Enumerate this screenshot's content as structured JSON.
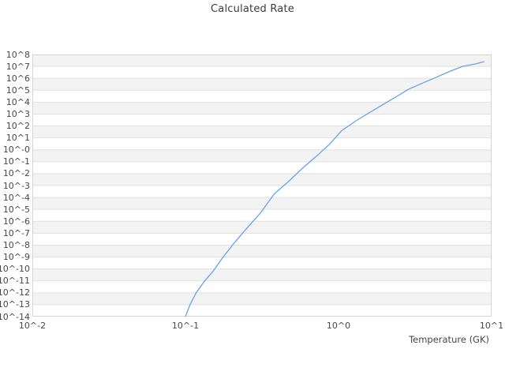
{
  "title": "Calculated Rate",
  "axes": {
    "x": {
      "label": "Temperature (GK)",
      "scale": "log",
      "ticks": [
        {
          "label": "10^-2",
          "log": -2
        },
        {
          "label": "10^-1",
          "log": -1
        },
        {
          "label": "10^0",
          "log": 0
        },
        {
          "label": "10^1",
          "log": 1
        }
      ]
    },
    "y": {
      "label": "",
      "scale": "log",
      "ticks": [
        {
          "label": "10^8",
          "log": 8
        },
        {
          "label": "10^7",
          "log": 7
        },
        {
          "label": "10^6",
          "log": 6
        },
        {
          "label": "10^5",
          "log": 5
        },
        {
          "label": "10^4",
          "log": 4
        },
        {
          "label": "10^3",
          "log": 3
        },
        {
          "label": "10^2",
          "log": 2
        },
        {
          "label": "10^1",
          "log": 1
        },
        {
          "label": "10^-0",
          "log": 0
        },
        {
          "label": "10^-1",
          "log": -1
        },
        {
          "label": "10^-2",
          "log": -2
        },
        {
          "label": "10^-3",
          "log": -3
        },
        {
          "label": "10^-4",
          "log": -4
        },
        {
          "label": "10^-5",
          "log": -5
        },
        {
          "label": "10^-6",
          "log": -6
        },
        {
          "label": "10^-7",
          "log": -7
        },
        {
          "label": "10^-8",
          "log": -8
        },
        {
          "label": "10^-9",
          "log": -9
        },
        {
          "label": "10^-10",
          "log": -10
        },
        {
          "label": "10^-11",
          "log": -11
        },
        {
          "label": "10^-12",
          "log": -12
        },
        {
          "label": "10^-13",
          "log": -13
        },
        {
          "label": "10^-14",
          "log": -14
        }
      ]
    }
  },
  "chart_data": {
    "type": "line",
    "title": "Calculated Rate",
    "xlabel": "Temperature (GK)",
    "ylabel": "",
    "x_scale": "log",
    "y_scale": "log",
    "xlim": [
      0.01,
      10
    ],
    "ylim": [
      1e-14,
      100000000.0
    ],
    "grid": "horizontal-bands-alternating",
    "legend": "none",
    "series": [
      {
        "name": "Calculated Rate",
        "color": "#69a2e3",
        "points_log10": [
          [
            -1.0,
            -14.0
          ],
          [
            -0.97,
            -13.0
          ],
          [
            -0.93,
            -12.0
          ],
          [
            -0.88,
            -11.1
          ],
          [
            -0.82,
            -10.2
          ],
          [
            -0.76,
            -9.1
          ],
          [
            -0.68,
            -7.8
          ],
          [
            -0.6,
            -6.6
          ],
          [
            -0.51,
            -5.3
          ],
          [
            -0.42,
            -3.7
          ],
          [
            -0.33,
            -2.7
          ],
          [
            -0.24,
            -1.6
          ],
          [
            -0.15,
            -0.6
          ],
          [
            -0.06,
            0.45
          ],
          [
            0.02,
            1.6
          ],
          [
            0.11,
            2.4
          ],
          [
            0.2,
            3.1
          ],
          [
            0.29,
            3.8
          ],
          [
            0.37,
            4.4
          ],
          [
            0.46,
            5.1
          ],
          [
            0.55,
            5.6
          ],
          [
            0.64,
            6.1
          ],
          [
            0.73,
            6.6
          ],
          [
            0.81,
            7.0
          ],
          [
            0.89,
            7.2
          ],
          [
            0.95,
            7.4
          ]
        ]
      }
    ]
  },
  "colors": {
    "background": "#ffffff",
    "band": "#f3f3f3",
    "gridline": "#e1e1e1",
    "plot_border": "#d4d4d4",
    "line": "#69a2e3",
    "title_text": "#3c3c3c",
    "tick_text": "#474747"
  }
}
